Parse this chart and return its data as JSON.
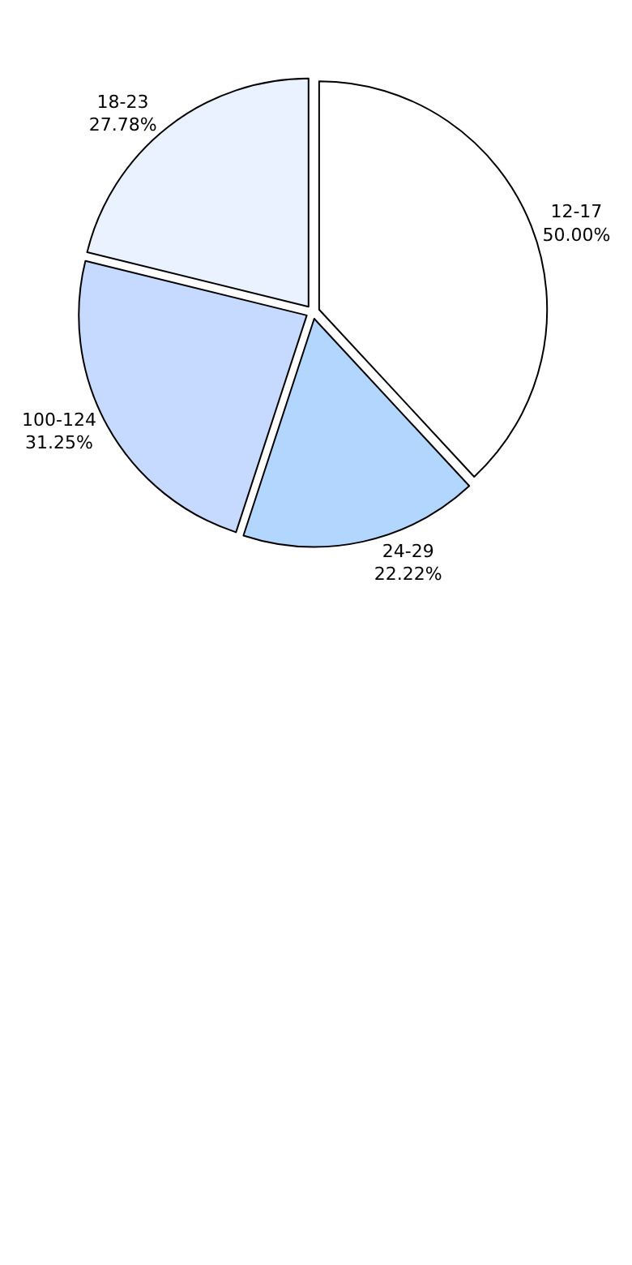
{
  "chart_data": {
    "type": "pie",
    "categories": [
      "12-17",
      "24-29",
      "100-124",
      "18-23"
    ],
    "values": [
      50,
      22.22,
      31.25,
      27.78
    ],
    "value_labels": [
      "50.00%",
      "22.22%",
      "31.25%",
      "27.78%"
    ],
    "colors": [
      "#ffffff",
      "#b3d6ff",
      "#c6d9ff",
      "#eaf2ff"
    ],
    "legend": false
  }
}
